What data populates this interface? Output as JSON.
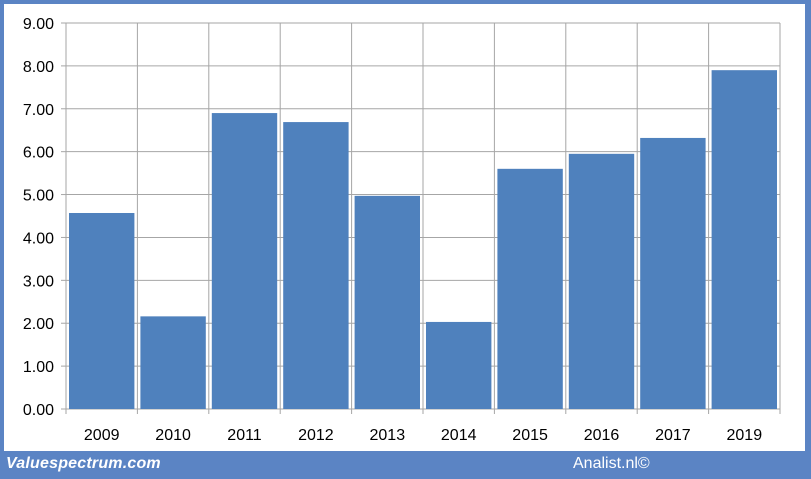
{
  "chart_data": {
    "type": "bar",
    "categories": [
      "2009",
      "2010",
      "2011",
      "2012",
      "2013",
      "2014",
      "2015",
      "2016",
      "2017",
      "2019"
    ],
    "values": [
      4.57,
      2.16,
      6.9,
      6.69,
      4.97,
      2.03,
      5.6,
      5.95,
      6.32,
      7.9
    ],
    "ylim": [
      0,
      9
    ],
    "yticks": [
      "0.00",
      "1.00",
      "2.00",
      "3.00",
      "4.00",
      "5.00",
      "6.00",
      "7.00",
      "8.00",
      "9.00"
    ],
    "grid": true,
    "bar_color": "#4f81bd",
    "title": "",
    "xlabel": "",
    "ylabel": ""
  },
  "footer": {
    "source_left": "Valuespectrum.com",
    "source_right": "Analist.nl©"
  },
  "colors": {
    "frame": "#5b84c4",
    "grid": "#a6a6a6"
  }
}
